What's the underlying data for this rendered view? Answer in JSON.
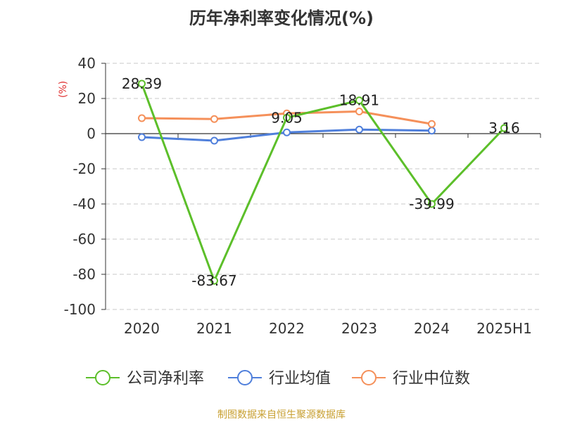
{
  "chart_data": {
    "type": "line",
    "title": "历年净利率变化情况(%)",
    "ylabel": "(%)",
    "xlabel": "",
    "categories": [
      "2020",
      "2021",
      "2022",
      "2023",
      "2024",
      "2025H1"
    ],
    "y_ticks": [
      "40",
      "20",
      "0",
      "-20",
      "-40",
      "-60",
      "-80",
      "-100"
    ],
    "ylim": [
      -100,
      40
    ],
    "grid": true,
    "legend_position": "bottom",
    "series": [
      {
        "name": "公司净利率",
        "color": "#5cbf2a",
        "values": [
          28.39,
          -83.67,
          9.05,
          18.91,
          -39.99,
          3.16
        ],
        "labels": [
          "28.39",
          "-83.67",
          "9.05",
          "18.91",
          "-39.99",
          "3.16"
        ]
      },
      {
        "name": "行业均值",
        "color": "#4f7fdb",
        "values": [
          -2.0,
          -4.0,
          0.7,
          2.3,
          1.7,
          null
        ]
      },
      {
        "name": "行业中位数",
        "color": "#f5905a",
        "values": [
          8.8,
          8.3,
          11.5,
          12.6,
          5.5,
          null
        ]
      }
    ]
  },
  "source": "制图数据来自恒生聚源数据库"
}
